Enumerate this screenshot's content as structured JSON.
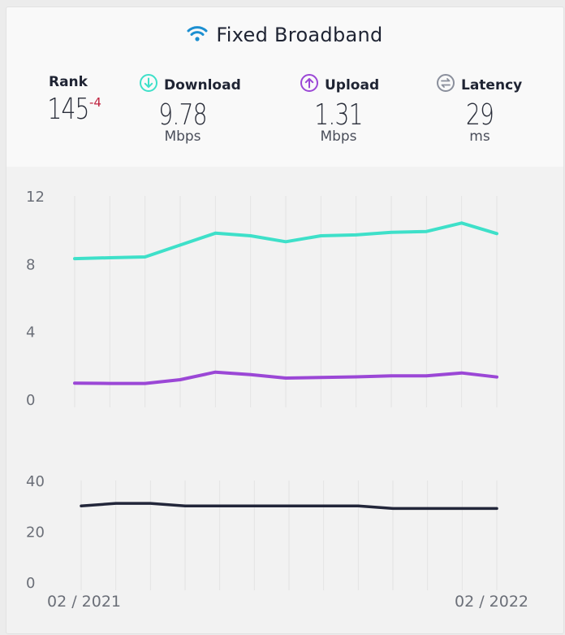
{
  "header": {
    "title": "Fixed Broadband",
    "rank": {
      "label": "Rank",
      "value": "145",
      "delta": "-4"
    },
    "download": {
      "label": "Download",
      "value": "9.78",
      "unit": "Mbps"
    },
    "upload": {
      "label": "Upload",
      "value": "1.31",
      "unit": "Mbps"
    },
    "latency": {
      "label": "Latency",
      "value": "29",
      "unit": "ms"
    }
  },
  "colors": {
    "download": "#3ee0c9",
    "upload": "#9b47d6",
    "latency": "#22263a",
    "wifi": "#1c8fd1",
    "latency_icon": "#8a8f9c"
  },
  "chart_data": [
    {
      "type": "line",
      "x_ticks": [
        "02 / 2021",
        "02 / 2022"
      ],
      "ylim": [
        0,
        12
      ],
      "yticks": [
        0,
        4,
        8,
        12
      ],
      "grid": true,
      "series": [
        {
          "name": "Download",
          "values": [
            8.3,
            8.35,
            8.4,
            9.1,
            9.8,
            9.65,
            9.3,
            9.65,
            9.7,
            9.85,
            9.9,
            10.4,
            9.78
          ]
        },
        {
          "name": "Upload",
          "values": [
            0.95,
            0.93,
            0.93,
            1.15,
            1.6,
            1.45,
            1.25,
            1.28,
            1.32,
            1.38,
            1.38,
            1.55,
            1.31
          ]
        }
      ]
    },
    {
      "type": "line",
      "x_ticks": [
        "02 / 2021",
        "02 / 2022"
      ],
      "ylim": [
        0,
        40
      ],
      "yticks": [
        0,
        20,
        40
      ],
      "grid": true,
      "series": [
        {
          "name": "Latency",
          "values": [
            30,
            31,
            31,
            30,
            30,
            30,
            30,
            30,
            30,
            29,
            29,
            29,
            29
          ]
        }
      ]
    }
  ]
}
